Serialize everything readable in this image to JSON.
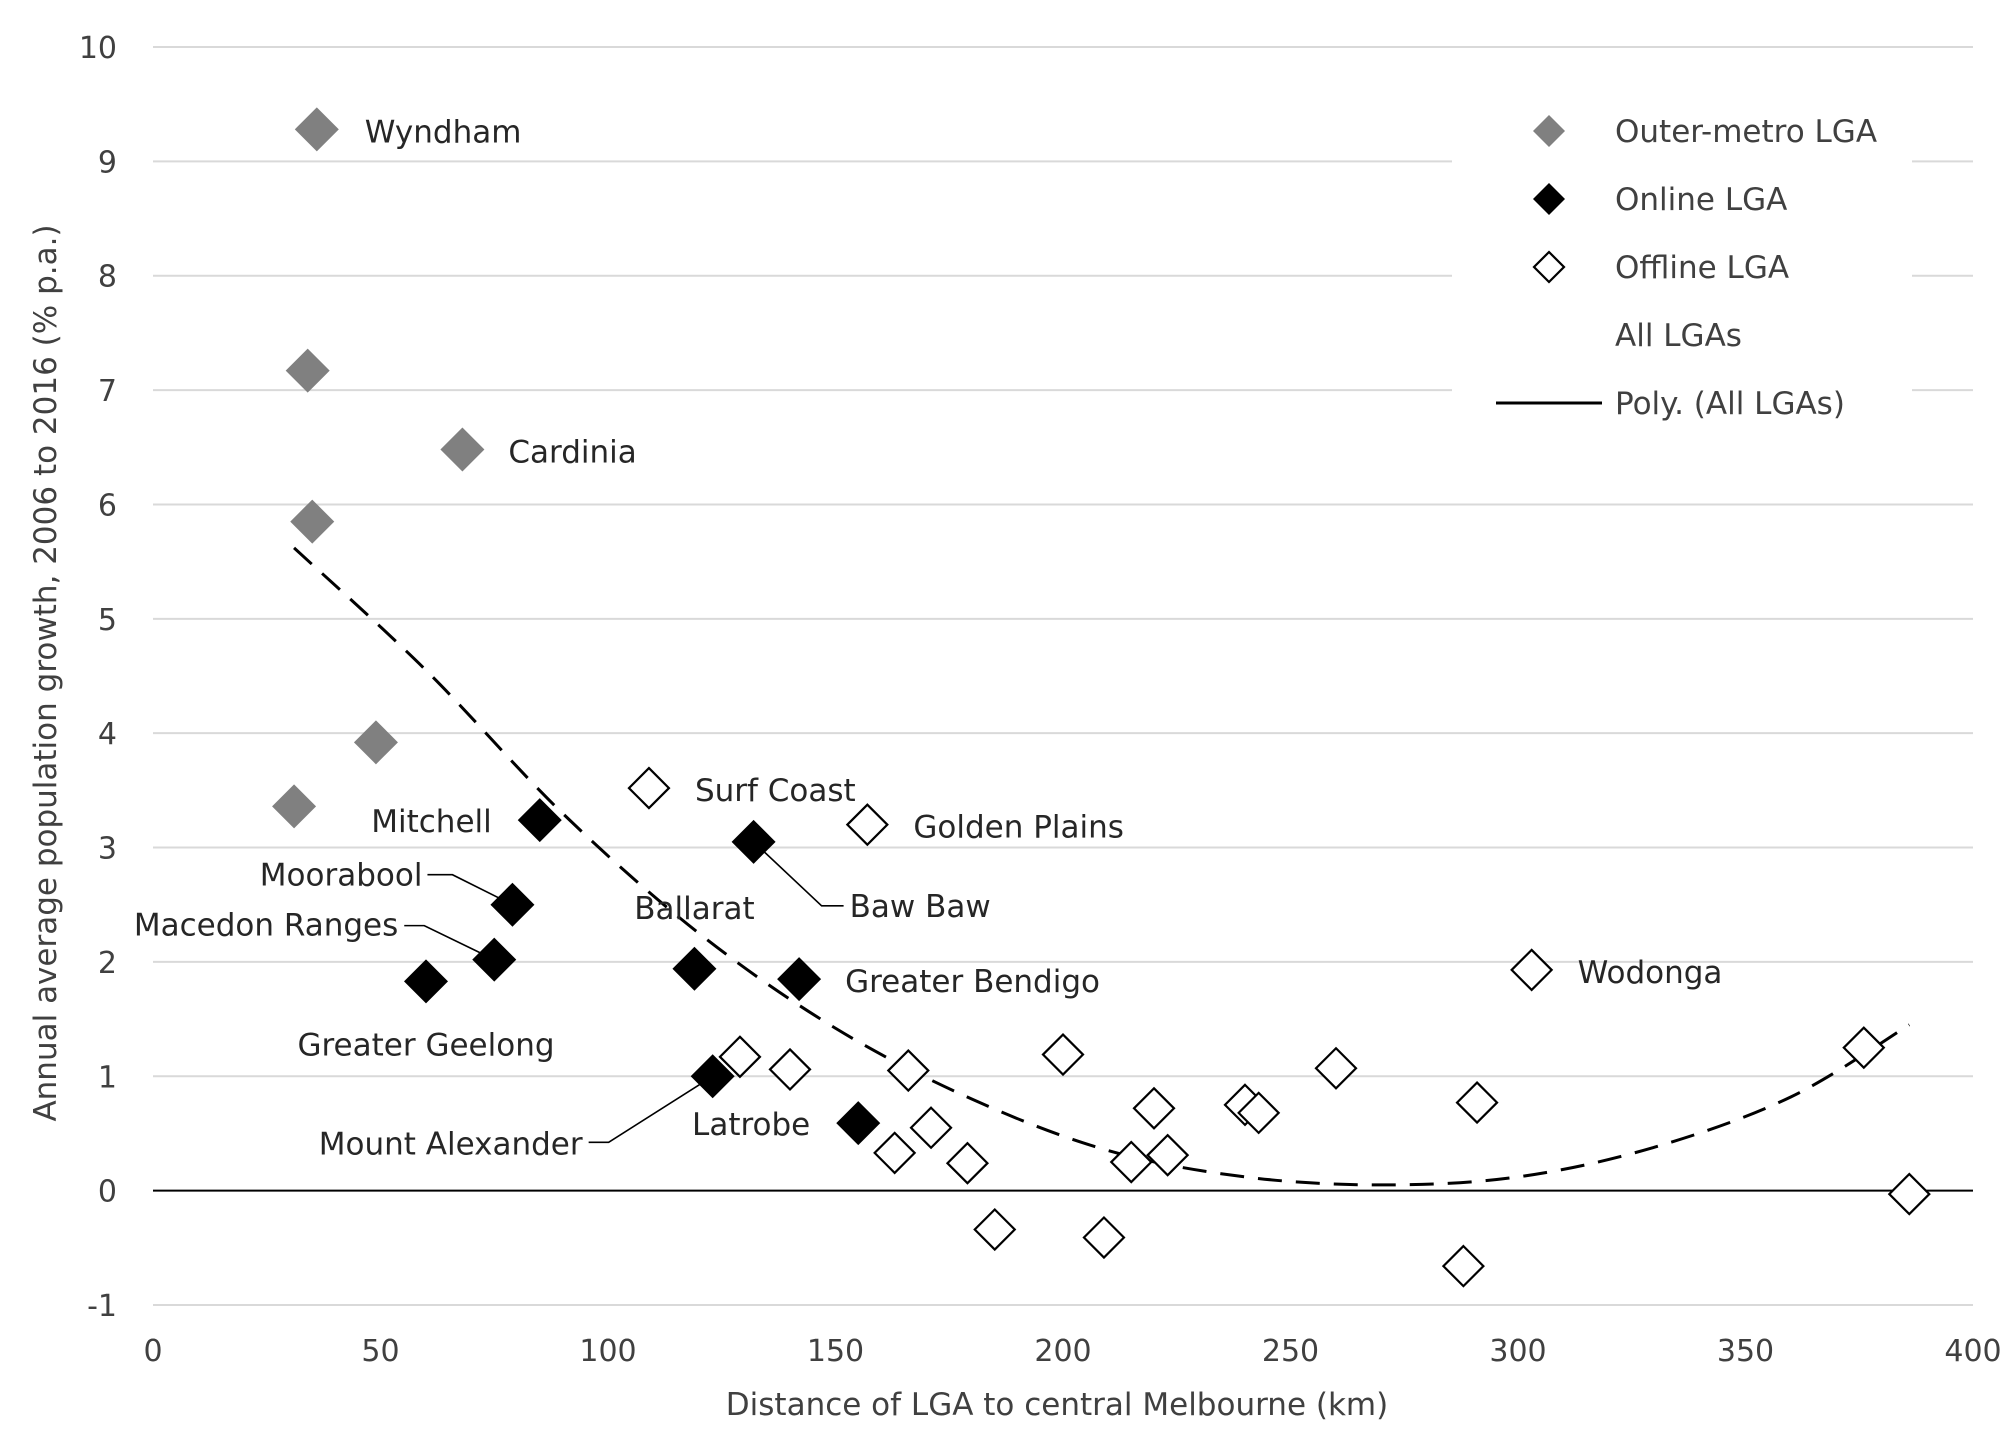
{
  "chart_data": {
    "type": "scatter",
    "title": "",
    "xlabel": "Distance of LGA to central Melbourne (km)",
    "ylabel": "Annual average population growth, 2006 to 2016 (% p.a.)",
    "xlim": [
      0,
      400
    ],
    "ylim": [
      -1,
      10
    ],
    "xticks": [
      0,
      50,
      100,
      150,
      200,
      250,
      300,
      350,
      400
    ],
    "yticks": [
      -1,
      0,
      1,
      2,
      3,
      4,
      5,
      6,
      7,
      8,
      9,
      10
    ],
    "grid": "horizontal",
    "legend_position": "top-right",
    "series": [
      {
        "name": "Outer-metro LGA",
        "marker": "diamond-filled",
        "color": "#808080",
        "points": [
          {
            "x": 36,
            "y": 9.28,
            "label": "Wyndham"
          },
          {
            "x": 34,
            "y": 7.17,
            "label": ""
          },
          {
            "x": 68,
            "y": 6.48,
            "label": "Cardinia"
          },
          {
            "x": 35,
            "y": 5.85,
            "label": ""
          },
          {
            "x": 49,
            "y": 3.92,
            "label": ""
          },
          {
            "x": 31,
            "y": 3.36,
            "label": ""
          }
        ]
      },
      {
        "name": "Online LGA",
        "marker": "diamond-filled",
        "color": "#000000",
        "points": [
          {
            "x": 85,
            "y": 3.24,
            "label": "Mitchell"
          },
          {
            "x": 79,
            "y": 2.5,
            "label": "Moorabool"
          },
          {
            "x": 75,
            "y": 2.02,
            "label": "Macedon Ranges"
          },
          {
            "x": 60,
            "y": 1.83,
            "label": "Greater Geelong"
          },
          {
            "x": 119,
            "y": 1.94,
            "label": "Ballarat"
          },
          {
            "x": 132,
            "y": 3.05,
            "label": "Baw Baw"
          },
          {
            "x": 142,
            "y": 1.85,
            "label": "Greater Bendigo"
          },
          {
            "x": 123,
            "y": 1.0,
            "label": "Mount Alexander"
          },
          {
            "x": 155,
            "y": 0.59,
            "label": "Latrobe"
          }
        ]
      },
      {
        "name": "Offline LGA",
        "marker": "diamond-open",
        "color": "#000000",
        "points": [
          {
            "x": 109,
            "y": 3.52,
            "label": "Surf Coast"
          },
          {
            "x": 157,
            "y": 3.2,
            "label": "Golden Plains"
          },
          {
            "x": 303,
            "y": 1.93,
            "label": "Wodonga"
          },
          {
            "x": 129,
            "y": 1.17,
            "label": ""
          },
          {
            "x": 140,
            "y": 1.06,
            "label": ""
          },
          {
            "x": 166,
            "y": 1.05,
            "label": ""
          },
          {
            "x": 163,
            "y": 0.33,
            "label": ""
          },
          {
            "x": 171,
            "y": 0.55,
            "label": ""
          },
          {
            "x": 179,
            "y": 0.24,
            "label": ""
          },
          {
            "x": 185,
            "y": -0.34,
            "label": ""
          },
          {
            "x": 200,
            "y": 1.19,
            "label": ""
          },
          {
            "x": 209,
            "y": -0.41,
            "label": ""
          },
          {
            "x": 215,
            "y": 0.25,
            "label": ""
          },
          {
            "x": 220,
            "y": 0.72,
            "label": ""
          },
          {
            "x": 223,
            "y": 0.31,
            "label": ""
          },
          {
            "x": 240,
            "y": 0.75,
            "label": ""
          },
          {
            "x": 243,
            "y": 0.68,
            "label": ""
          },
          {
            "x": 260,
            "y": 1.07,
            "label": ""
          },
          {
            "x": 288,
            "y": -0.66,
            "label": ""
          },
          {
            "x": 291,
            "y": 0.77,
            "label": ""
          },
          {
            "x": 376,
            "y": 1.25,
            "label": ""
          },
          {
            "x": 386,
            "y": -0.03,
            "label": ""
          }
        ]
      },
      {
        "name": "All LGAs",
        "marker": "none",
        "color": "#000000",
        "points": []
      }
    ],
    "trendline": {
      "name": "Poly. (All LGAs)",
      "type": "polynomial",
      "style": "dashed",
      "color": "#000000",
      "x_range": [
        31,
        386
      ],
      "points": [
        {
          "x": 31,
          "y": 5.62
        },
        {
          "x": 60,
          "y": 4.55
        },
        {
          "x": 90,
          "y": 3.3
        },
        {
          "x": 120,
          "y": 2.25
        },
        {
          "x": 150,
          "y": 1.42
        },
        {
          "x": 180,
          "y": 0.8
        },
        {
          "x": 210,
          "y": 0.35
        },
        {
          "x": 240,
          "y": 0.12
        },
        {
          "x": 270,
          "y": 0.05
        },
        {
          "x": 300,
          "y": 0.12
        },
        {
          "x": 330,
          "y": 0.38
        },
        {
          "x": 360,
          "y": 0.82
        },
        {
          "x": 386,
          "y": 1.45
        }
      ]
    },
    "legend": [
      {
        "label": "Outer-metro LGA",
        "marker": "diamond-filled",
        "color": "#808080"
      },
      {
        "label": "Online LGA",
        "marker": "diamond-filled",
        "color": "#000000"
      },
      {
        "label": "Offline LGA",
        "marker": "diamond-open",
        "color": "#000000"
      },
      {
        "label": "All LGAs",
        "marker": "none",
        "color": "#000000"
      },
      {
        "label": "Poly. (All LGAs)",
        "marker": "line",
        "color": "#000000"
      }
    ]
  }
}
